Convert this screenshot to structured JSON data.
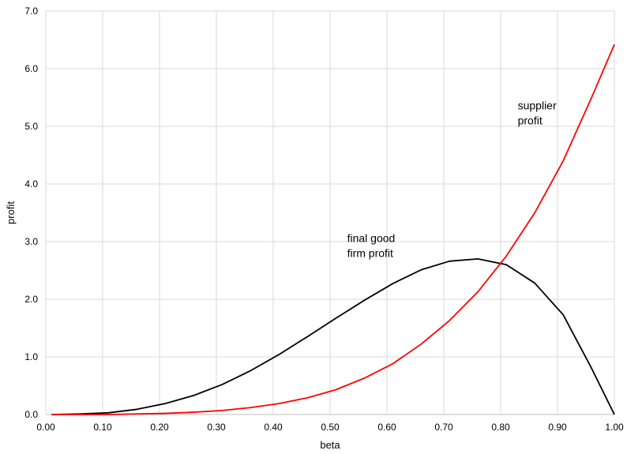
{
  "chart_data": {
    "type": "line",
    "title": "",
    "xlabel": "beta",
    "ylabel": "profit",
    "xlim": [
      0.0,
      1.0
    ],
    "ylim": [
      0.0,
      7.0
    ],
    "xticks": [
      "0.00",
      "0.10",
      "0.20",
      "0.30",
      "0.40",
      "0.50",
      "0.60",
      "0.70",
      "0.80",
      "0.90",
      "1.00"
    ],
    "yticks": [
      "0.0",
      "1.0",
      "2.0",
      "3.0",
      "4.0",
      "5.0",
      "6.0",
      "7.0"
    ],
    "grid": {
      "vertical": true,
      "horizontal": true
    },
    "legend": "none",
    "x": [
      0.01,
      0.06,
      0.11,
      0.16,
      0.21,
      0.26,
      0.31,
      0.36,
      0.41,
      0.46,
      0.51,
      0.56,
      0.61,
      0.66,
      0.71,
      0.76,
      0.81,
      0.86,
      0.91,
      0.96,
      1.0
    ],
    "series": [
      {
        "color": "#000000",
        "values": [
          0.0,
          0.01,
          0.03,
          0.09,
          0.19,
          0.33,
          0.52,
          0.76,
          1.04,
          1.35,
          1.67,
          1.98,
          2.27,
          2.51,
          2.66,
          2.7,
          2.6,
          2.28,
          1.73,
          0.8,
          0.0
        ]
      },
      {
        "color": "#ff0000",
        "values": [
          0.0,
          0.0,
          0.0,
          0.01,
          0.02,
          0.04,
          0.07,
          0.12,
          0.19,
          0.29,
          0.43,
          0.63,
          0.88,
          1.22,
          1.63,
          2.13,
          2.75,
          3.5,
          4.4,
          5.5,
          6.42
        ]
      }
    ],
    "annotations": [
      {
        "lines": [
          "final good",
          "firm profit"
        ],
        "x": 0.53,
        "y": 2.8
      },
      {
        "lines": [
          "supplier",
          "profit"
        ],
        "x": 0.83,
        "y": 5.1
      }
    ]
  }
}
